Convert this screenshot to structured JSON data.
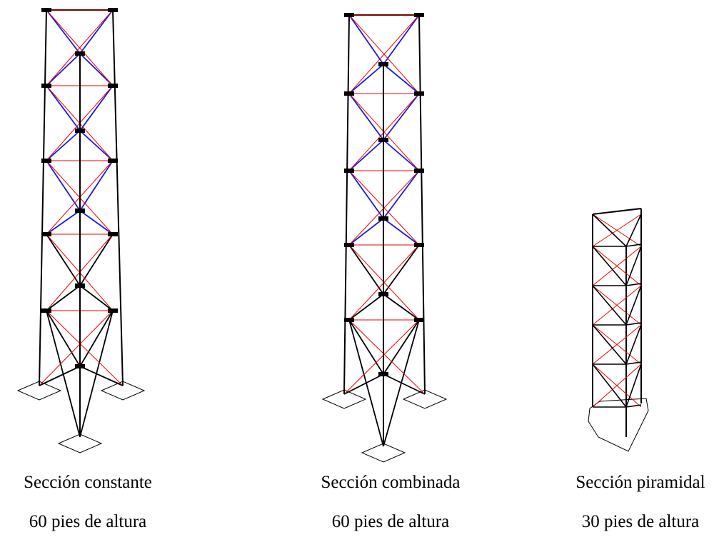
{
  "towers": [
    {
      "title": "Sección constante",
      "height": "60 pies de altura"
    },
    {
      "title": "Sección combinada",
      "height": "60 pies de altura"
    },
    {
      "title": "Sección piramidal",
      "height": "30 pies de altura"
    }
  ]
}
